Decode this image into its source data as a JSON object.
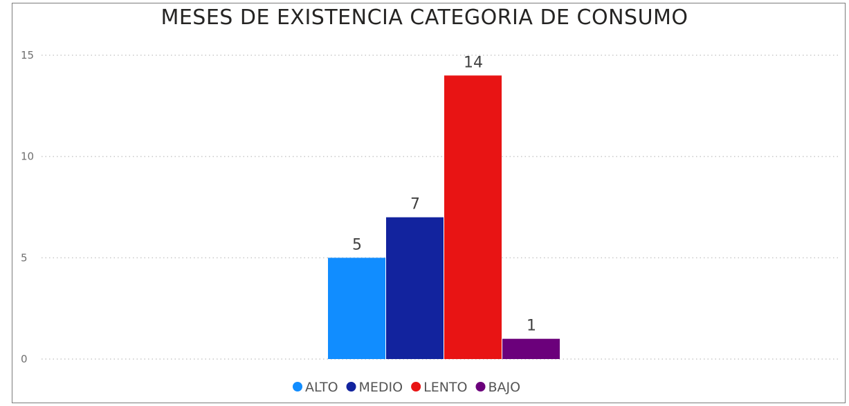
{
  "chart_data": {
    "type": "bar",
    "title": "MESES DE EXISTENCIA CATEGORIA DE CONSUMO",
    "xlabel": "",
    "ylabel": "",
    "ylim": [
      0,
      15
    ],
    "yticks": [
      0,
      5,
      10,
      15
    ],
    "grid": true,
    "legend_position": "bottom-center",
    "series": [
      {
        "name": "ALTO",
        "values": [
          5
        ],
        "color": "#118dff"
      },
      {
        "name": "MEDIO",
        "values": [
          7
        ],
        "color": "#12239e"
      },
      {
        "name": "LENTO",
        "values": [
          14
        ],
        "color": "#e81414"
      },
      {
        "name": "BAJO",
        "values": [
          1
        ],
        "color": "#6b007b"
      }
    ],
    "data_labels": [
      "5",
      "7",
      "14",
      "1"
    ]
  }
}
